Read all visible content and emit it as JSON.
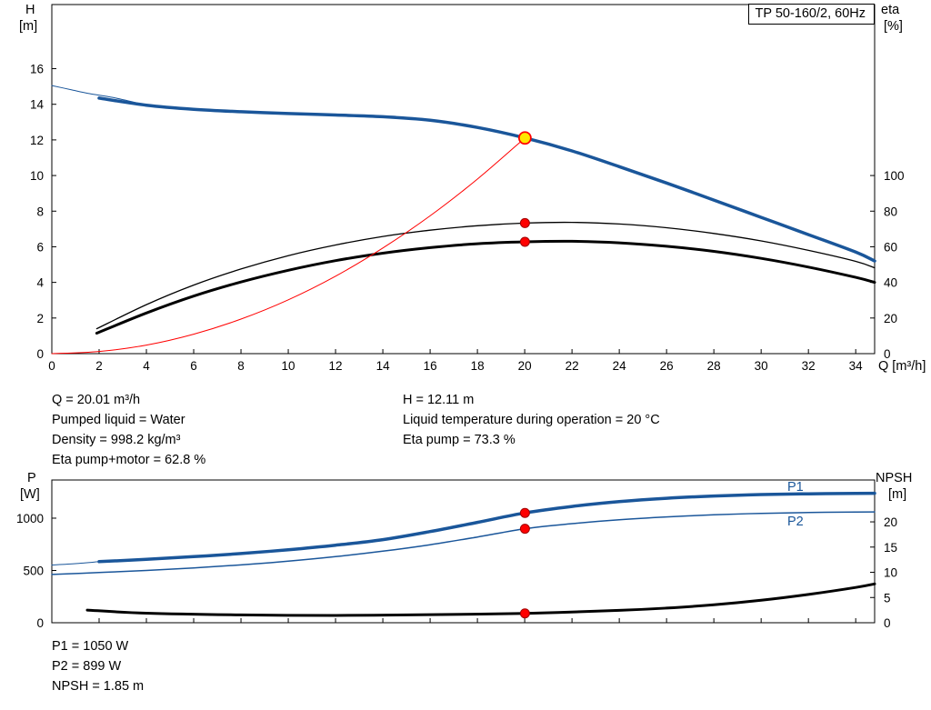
{
  "title_box": {
    "label": "TP 50-160/2, 60Hz"
  },
  "axes_labels": {
    "h_line1": "H",
    "h_line2": "[m]",
    "eta_line1": "eta",
    "eta_line2": "[%]",
    "q_label": "Q [m³/h]",
    "p_line1": "P",
    "p_line2": "[W]",
    "npsh_line1": "NPSH",
    "npsh_line2": "[m]"
  },
  "curve_labels": {
    "p1": "P1",
    "p2": "P2"
  },
  "info_mid": {
    "left": [
      "Q = 20.01 m³/h",
      "Pumped liquid = Water",
      "Density = 998.2 kg/m³",
      "Eta pump+motor = 62.8 %"
    ],
    "right": [
      "H = 12.11 m",
      "Liquid temperature during operation = 20 °C",
      "Eta pump = 73.3 %"
    ]
  },
  "info_bottom": [
    "P1 = 1050 W",
    "P2 = 899 W",
    "NPSH = 1.85 m"
  ],
  "colors": {
    "curve_blue": "#1a569a",
    "curve_black": "#000000",
    "curve_red": "#ff0000",
    "duty_fill": "#ffe600",
    "marker_red": "#ff0000",
    "axis": "#000000"
  },
  "chart_data": [
    {
      "type": "line",
      "title": "TP 50-160/2, 60Hz",
      "xlabel": "Q [m³/h]",
      "ylabel_left": "H [m]",
      "ylabel_right": "eta [%]",
      "xlim": [
        0,
        34.8
      ],
      "ylim_left": [
        0,
        19.6
      ],
      "ylim_right": [
        0,
        196
      ],
      "x_ticks": [
        0,
        2,
        4,
        6,
        8,
        10,
        12,
        14,
        16,
        18,
        20,
        22,
        24,
        26,
        28,
        30,
        32,
        34
      ],
      "y_ticks_left": [
        0,
        2,
        4,
        6,
        8,
        10,
        12,
        14,
        16
      ],
      "y_ticks_right": [
        0,
        20,
        40,
        60,
        80,
        100
      ],
      "grid": false,
      "series": [
        {
          "name": "h-curve-thin-extension",
          "axis": "left",
          "color": "#1a569a",
          "width": 1,
          "x": [
            0,
            0.8,
            1.6,
            2.6,
            4
          ],
          "y": [
            15.05,
            14.82,
            14.6,
            14.38,
            13.95
          ]
        },
        {
          "name": "eta-pump-curve",
          "axis": "right",
          "color": "#000000",
          "width": 1.3,
          "x": [
            1.9,
            4,
            6,
            8,
            10,
            12,
            14,
            16,
            18,
            20.01,
            22,
            24,
            26,
            28,
            30,
            32,
            34,
            34.8
          ],
          "y": [
            14,
            27.5,
            38.5,
            47.5,
            55,
            61,
            65.8,
            69.3,
            71.8,
            73.3,
            73.7,
            72.8,
            70.7,
            67.5,
            63.3,
            58,
            51.8,
            48.2
          ]
        },
        {
          "name": "eta-pump-motor-curve",
          "axis": "right",
          "color": "#000000",
          "width": 3,
          "x": [
            1.9,
            4,
            6,
            8,
            10,
            12,
            14,
            16,
            18,
            20.01,
            22,
            24,
            26,
            28,
            30,
            32,
            34,
            34.8
          ],
          "y": [
            11.5,
            22.8,
            32.3,
            40.2,
            46.8,
            52.2,
            56.4,
            59.5,
            61.7,
            62.8,
            63.1,
            62.2,
            60.3,
            57.4,
            53.5,
            48.6,
            42.8,
            40
          ]
        },
        {
          "name": "system-curve",
          "axis": "left",
          "color": "#ff0000",
          "width": 1,
          "x": [
            0,
            2,
            4,
            6,
            8,
            10,
            12,
            14,
            16,
            18,
            20.01
          ],
          "y": [
            0,
            0.12,
            0.48,
            1.09,
            1.94,
            3.02,
            4.35,
            5.93,
            7.74,
            9.8,
            12.11
          ]
        },
        {
          "name": "h-curve",
          "axis": "left",
          "color": "#1a569a",
          "width": 3.5,
          "x": [
            2,
            4,
            6,
            8,
            10,
            12,
            14,
            16,
            18,
            20.01,
            22,
            24,
            26,
            28,
            30,
            32,
            34,
            34.8
          ],
          "y": [
            14.35,
            13.95,
            13.72,
            13.58,
            13.48,
            13.4,
            13.3,
            13.1,
            12.7,
            12.11,
            11.38,
            10.5,
            9.58,
            8.62,
            7.65,
            6.68,
            5.7,
            5.2
          ]
        }
      ],
      "markers": [
        {
          "name": "eta-pump-point",
          "x": 20.01,
          "y": 73.3,
          "axis": "right",
          "r": 5,
          "fill": "#ff0000",
          "stroke": "#a00000"
        },
        {
          "name": "eta-pump-motor-point",
          "x": 20.01,
          "y": 62.8,
          "axis": "right",
          "r": 5,
          "fill": "#ff0000",
          "stroke": "#a00000"
        },
        {
          "name": "duty-point",
          "x": 20.01,
          "y": 12.11,
          "axis": "left",
          "r": 6.5,
          "fill": "#ffe600",
          "stroke": "#ff0000"
        }
      ]
    },
    {
      "type": "line",
      "title": "",
      "xlabel": "",
      "ylabel_left": "P [W]",
      "ylabel_right": "NPSH [m]",
      "xlim": [
        0,
        34.8
      ],
      "ylim_left": [
        0,
        1365
      ],
      "ylim_right": [
        0,
        28.3
      ],
      "x_ticks": [
        0,
        2,
        4,
        6,
        8,
        10,
        12,
        14,
        16,
        18,
        20,
        22,
        24,
        26,
        28,
        30,
        32,
        34
      ],
      "y_ticks_left": [
        0,
        500,
        1000
      ],
      "y_ticks_right": [
        0,
        5,
        10,
        15,
        20
      ],
      "grid": false,
      "series": [
        {
          "name": "p1-curve-thin-extension",
          "axis": "left",
          "color": "#1a569a",
          "width": 1,
          "x": [
            0,
            1,
            2
          ],
          "y": [
            552,
            565,
            584
          ]
        },
        {
          "name": "p2-curve",
          "axis": "left",
          "color": "#1a569a",
          "width": 1.5,
          "x": [
            0,
            2,
            4,
            6,
            8,
            10,
            12,
            14,
            16,
            18,
            20.01,
            22,
            24,
            26,
            28,
            30,
            32,
            34,
            34.8
          ],
          "y": [
            462,
            480,
            500,
            524,
            553,
            589,
            632,
            684,
            746,
            820,
            899,
            948,
            985,
            1012,
            1032,
            1046,
            1054,
            1059,
            1060
          ]
        },
        {
          "name": "p1-curve",
          "axis": "left",
          "color": "#1a569a",
          "width": 3.5,
          "x": [
            2,
            4,
            6,
            8,
            10,
            12,
            14,
            16,
            18,
            20.01,
            22,
            24,
            26,
            28,
            30,
            32,
            34,
            34.8
          ],
          "y": [
            584,
            606,
            632,
            662,
            698,
            742,
            795,
            872,
            960,
            1050,
            1112,
            1158,
            1190,
            1212,
            1226,
            1233,
            1237,
            1238
          ]
        },
        {
          "name": "npsh-curve",
          "axis": "right",
          "color": "#000000",
          "width": 3,
          "x": [
            1.5,
            4,
            8,
            12,
            16,
            20.01,
            24,
            26,
            28,
            30,
            32,
            34,
            34.8
          ],
          "y": [
            2.5,
            1.9,
            1.55,
            1.45,
            1.6,
            1.85,
            2.45,
            2.9,
            3.55,
            4.45,
            5.6,
            7.0,
            7.7
          ]
        }
      ],
      "markers": [
        {
          "name": "p1-point",
          "x": 20.01,
          "y": 1050,
          "axis": "left",
          "r": 5,
          "fill": "#ff0000",
          "stroke": "#a00000"
        },
        {
          "name": "p2-point",
          "x": 20.01,
          "y": 899,
          "axis": "left",
          "r": 5,
          "fill": "#ff0000",
          "stroke": "#a00000"
        },
        {
          "name": "npsh-point",
          "x": 20.01,
          "y": 1.85,
          "axis": "right",
          "r": 5,
          "fill": "#ff0000",
          "stroke": "#a00000"
        }
      ]
    }
  ]
}
